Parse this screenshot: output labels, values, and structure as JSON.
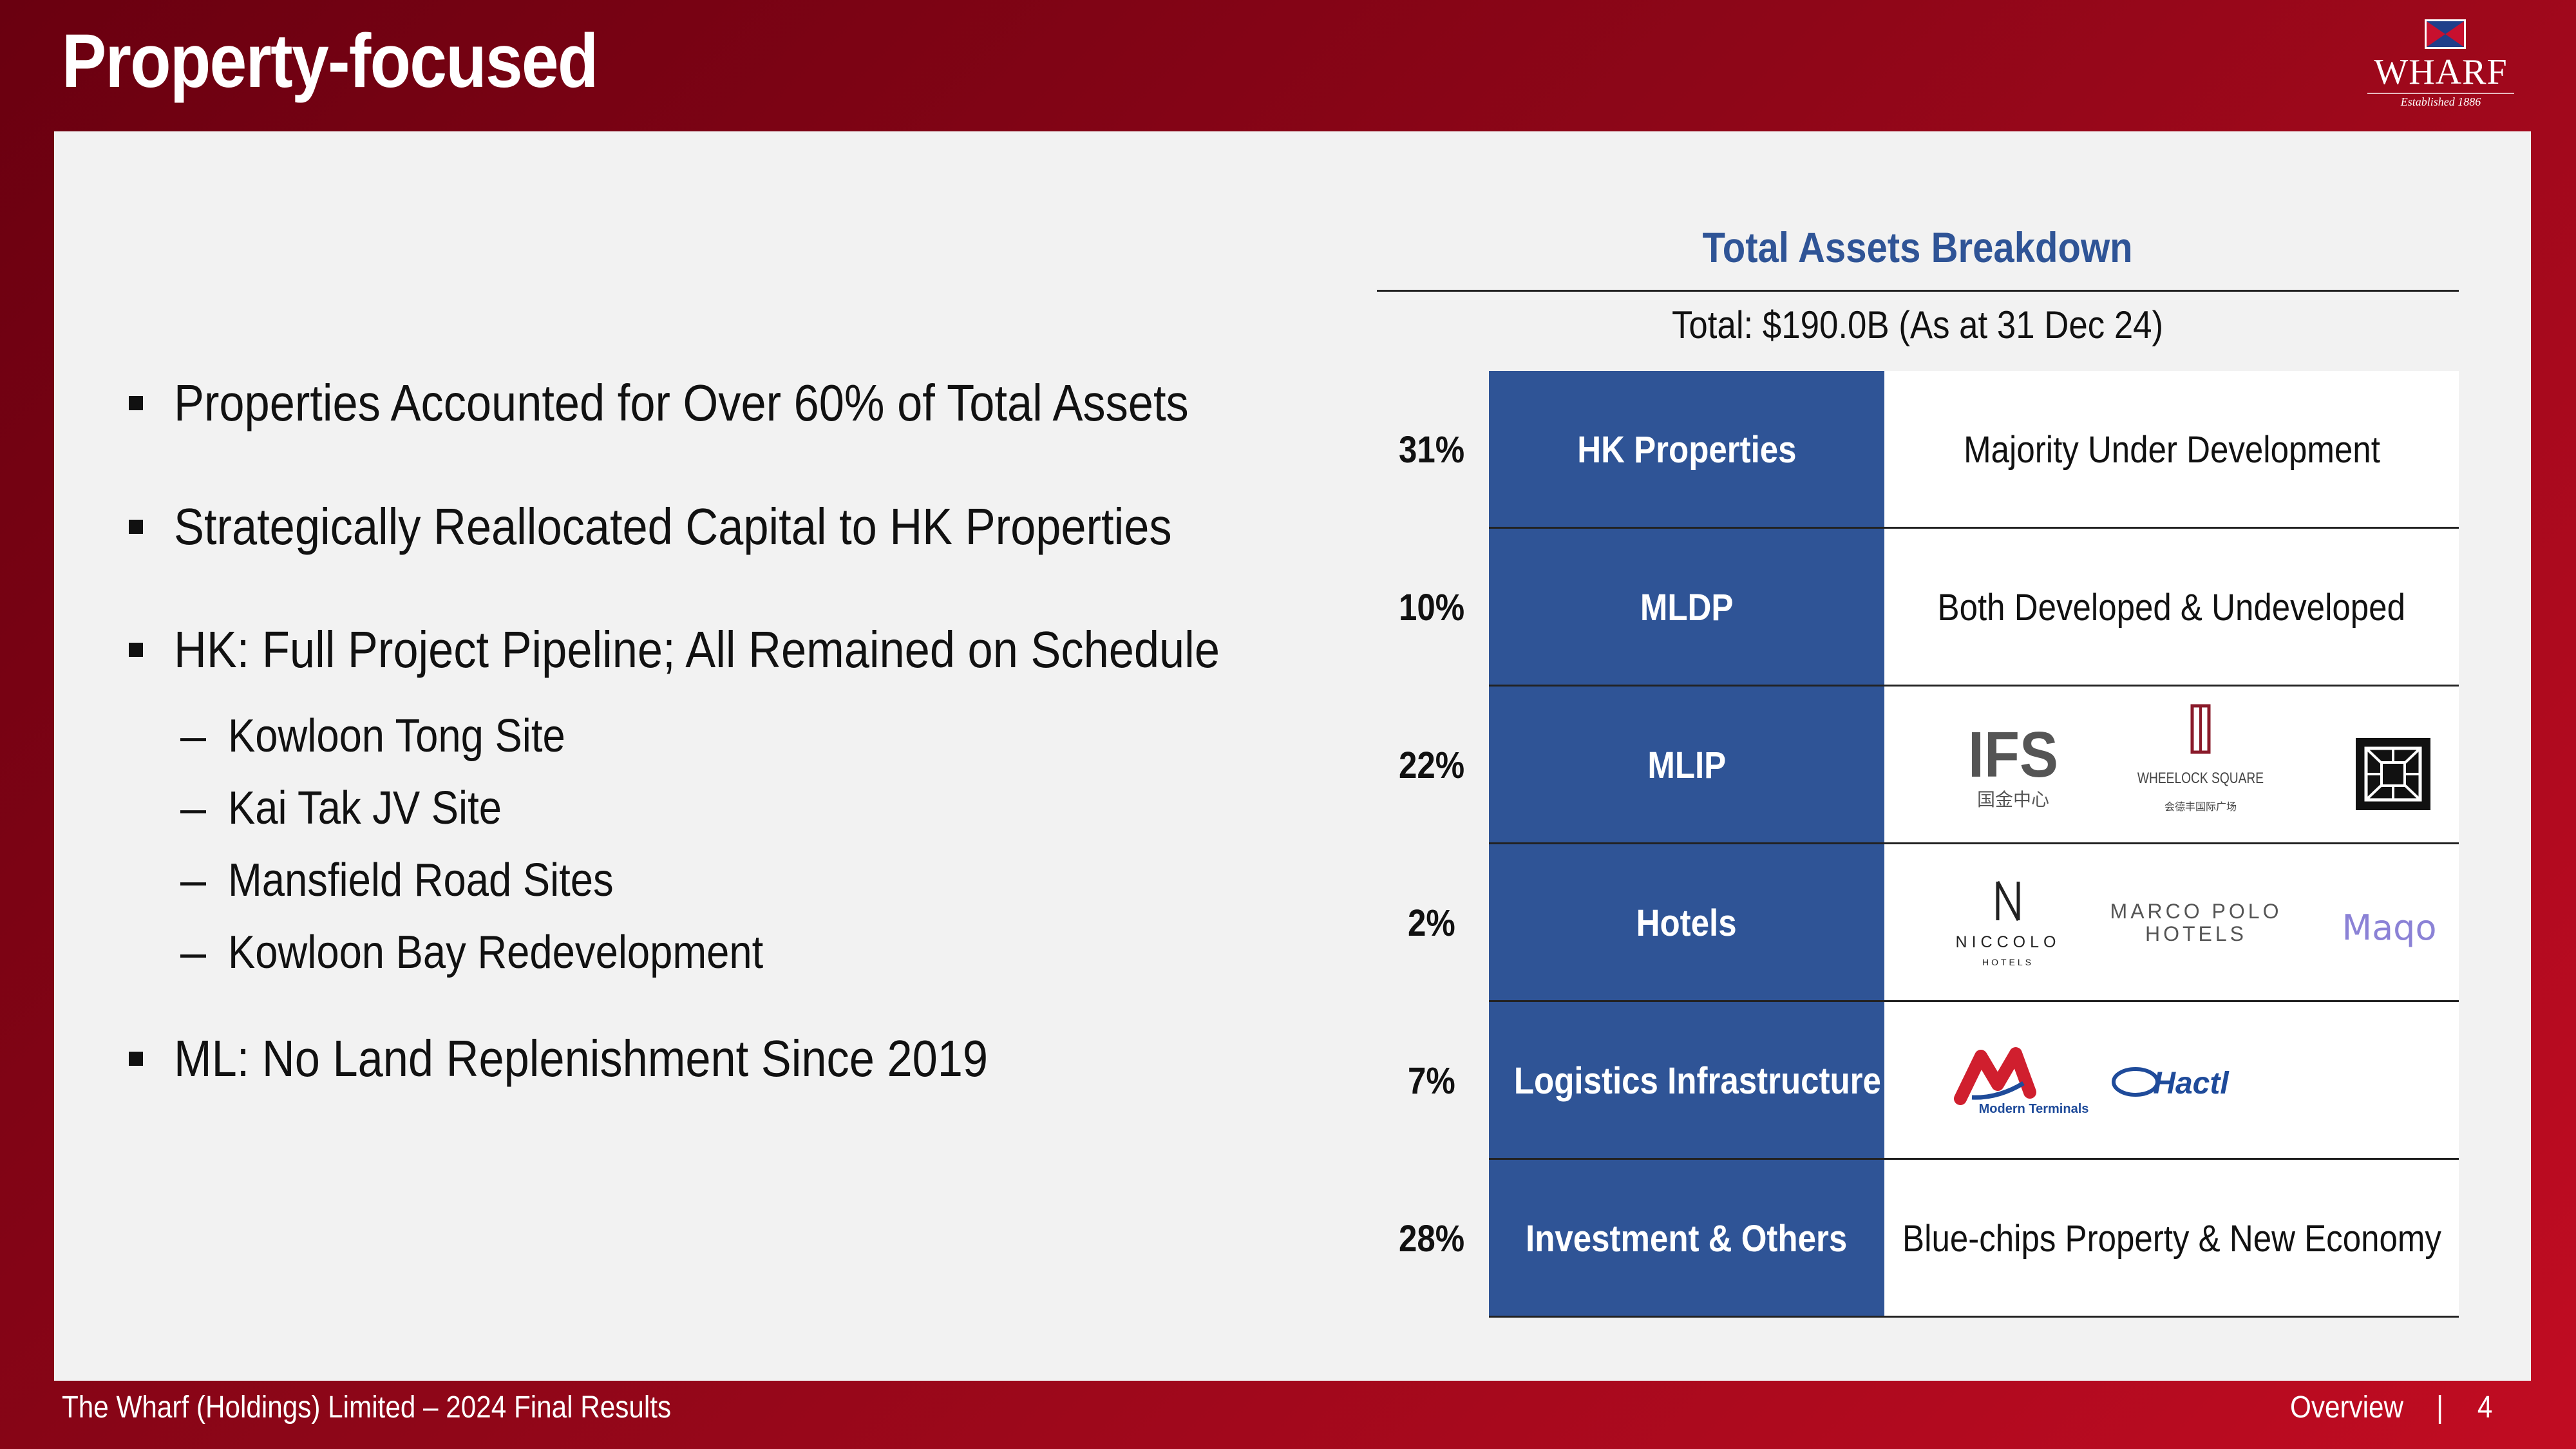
{
  "header": {
    "title": "Property-focused"
  },
  "logo": {
    "name": "WHARF",
    "tagline": "Established 1886"
  },
  "bullets": [
    {
      "text": "Properties Accounted for Over 60% of Total Assets"
    },
    {
      "text": "Strategically Reallocated Capital to HK Properties"
    },
    {
      "text": "HK: Full Project Pipeline; All Remained on Schedule",
      "subitems": [
        "Kowloon Tong Site",
        "Kai Tak JV Site",
        "Mansfield Road Sites",
        "Kowloon Bay Redevelopment"
      ]
    },
    {
      "text": "ML: No Land Replenishment Since 2019"
    }
  ],
  "assets_table": {
    "title": "Total Assets Breakdown",
    "total": "Total: $190.0B (As at 31 Dec 24)",
    "rows": [
      {
        "percent": "31%",
        "category": "HK Properties",
        "description": "Majority Under Development"
      },
      {
        "percent": "10%",
        "category": "MLDP",
        "description": "Both Developed & Undeveloped"
      },
      {
        "percent": "22%",
        "category": "MLIP",
        "logos": [
          {
            "text": "IFS",
            "sub": "国金中心"
          },
          {
            "text": "WHEELOCK SQUARE",
            "sub": "会德丰国际广场"
          },
          {
            "icon": "square-pattern-logo-icon"
          }
        ]
      },
      {
        "percent": "2%",
        "category": "Hotels",
        "logos": [
          {
            "text": "NICCOLO",
            "sub": "HOTELS"
          },
          {
            "text": "MARCO POLO HOTELS"
          },
          {
            "text": "Maqo"
          }
        ]
      },
      {
        "percent": "7%",
        "category": "Logistics Infrastructure",
        "logos": [
          {
            "text": "Modern Terminals"
          },
          {
            "text": "Hactl"
          }
        ]
      },
      {
        "percent": "28%",
        "category": "Investment & Others",
        "description": "Blue-chips Property & New Economy"
      }
    ]
  },
  "footer": {
    "left": "The Wharf (Holdings) Limited – 2024 Final Results",
    "section": "Overview",
    "separator": "|",
    "page_number": "4"
  },
  "colors": {
    "header_red": "#8e0618",
    "category_blue": "#2f5496",
    "title_blue": "#2f5496",
    "panel": "#f2f2f2",
    "maqo_purple": "#8b82d6",
    "modern_terminals_red": "#d01f2e",
    "hactl_blue": "#1f4b9a"
  }
}
